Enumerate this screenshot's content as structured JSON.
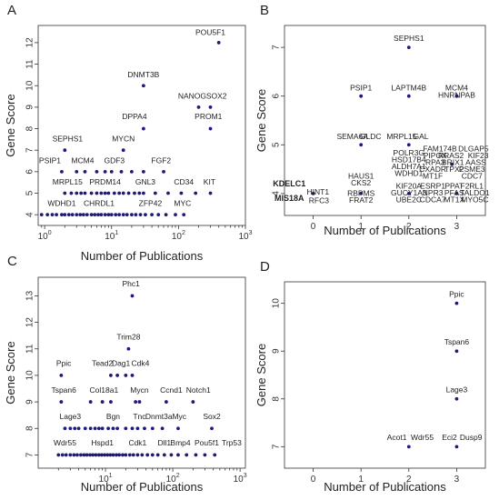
{
  "chart_data": [
    {
      "panel": "A",
      "type": "scatter",
      "xlabel": "Number of Publications",
      "ylabel": "Gene Score",
      "xscale": "log",
      "xlim": [
        0.8,
        1000
      ],
      "ylim": [
        3.5,
        12.8
      ],
      "xticks": [
        1,
        10,
        100,
        1000
      ],
      "yticks": [
        4,
        5,
        6,
        7,
        8,
        9,
        10,
        11,
        12
      ],
      "points": [
        {
          "x": 1.8,
          "y": 6
        },
        {
          "x": 3,
          "y": 6
        },
        {
          "x": 4,
          "y": 6
        },
        {
          "x": 6,
          "y": 6
        },
        {
          "x": 8,
          "y": 6
        },
        {
          "x": 10,
          "y": 6
        },
        {
          "x": 14,
          "y": 6
        },
        {
          "x": 20,
          "y": 6
        },
        {
          "x": 30,
          "y": 6
        },
        {
          "x": 2,
          "y": 5
        },
        {
          "x": 2.5,
          "y": 5
        },
        {
          "x": 3,
          "y": 5
        },
        {
          "x": 3.5,
          "y": 5
        },
        {
          "x": 4,
          "y": 5
        },
        {
          "x": 5,
          "y": 5
        },
        {
          "x": 6,
          "y": 5
        },
        {
          "x": 7,
          "y": 5
        },
        {
          "x": 8,
          "y": 5
        },
        {
          "x": 9,
          "y": 5
        },
        {
          "x": 11,
          "y": 5
        },
        {
          "x": 13,
          "y": 5
        },
        {
          "x": 15,
          "y": 5
        },
        {
          "x": 18,
          "y": 5
        },
        {
          "x": 22,
          "y": 5
        },
        {
          "x": 26,
          "y": 5
        },
        {
          "x": 30,
          "y": 5
        },
        {
          "x": 45,
          "y": 5
        },
        {
          "x": 70,
          "y": 5
        },
        {
          "x": 110,
          "y": 5
        },
        {
          "x": 180,
          "y": 5
        },
        {
          "x": 300,
          "y": 5
        },
        {
          "x": 0.9,
          "y": 4
        },
        {
          "x": 1.1,
          "y": 4
        },
        {
          "x": 1.3,
          "y": 4
        },
        {
          "x": 1.5,
          "y": 4
        },
        {
          "x": 1.8,
          "y": 4
        },
        {
          "x": 2,
          "y": 4
        },
        {
          "x": 2.3,
          "y": 4
        },
        {
          "x": 2.6,
          "y": 4
        },
        {
          "x": 3,
          "y": 4
        },
        {
          "x": 3.4,
          "y": 4
        },
        {
          "x": 3.8,
          "y": 4
        },
        {
          "x": 4.3,
          "y": 4
        },
        {
          "x": 5,
          "y": 4
        },
        {
          "x": 5.6,
          "y": 4
        },
        {
          "x": 6.3,
          "y": 4
        },
        {
          "x": 7,
          "y": 4
        },
        {
          "x": 8,
          "y": 4
        },
        {
          "x": 9,
          "y": 4
        },
        {
          "x": 10,
          "y": 4
        },
        {
          "x": 11.5,
          "y": 4
        },
        {
          "x": 13,
          "y": 4
        },
        {
          "x": 15,
          "y": 4
        },
        {
          "x": 17,
          "y": 4
        },
        {
          "x": 20,
          "y": 4
        },
        {
          "x": 23,
          "y": 4
        },
        {
          "x": 27,
          "y": 4
        },
        {
          "x": 32,
          "y": 4
        },
        {
          "x": 40,
          "y": 4
        },
        {
          "x": 50,
          "y": 4
        },
        {
          "x": 65,
          "y": 4
        },
        {
          "x": 90,
          "y": 4
        },
        {
          "x": 120,
          "y": 4
        },
        {
          "x": 2,
          "y": 7
        },
        {
          "x": 15,
          "y": 7
        },
        {
          "x": 30,
          "y": 8
        },
        {
          "x": 60,
          "y": 6
        },
        {
          "x": 30,
          "y": 10
        },
        {
          "x": 200,
          "y": 9
        },
        {
          "x": 300,
          "y": 9
        },
        {
          "x": 300,
          "y": 8
        },
        {
          "x": 400,
          "y": 12
        }
      ],
      "labels": [
        {
          "text": "POU5F1",
          "x": 300,
          "y": 12.35
        },
        {
          "text": "DNMT3B",
          "x": 30,
          "y": 10.4
        },
        {
          "text": "NANOG",
          "x": 160,
          "y": 9.4
        },
        {
          "text": "SOX2",
          "x": 370,
          "y": 9.4
        },
        {
          "text": "PROM1",
          "x": 280,
          "y": 8.45
        },
        {
          "text": "DPPA4",
          "x": 22,
          "y": 8.45
        },
        {
          "text": "MYCN",
          "x": 15,
          "y": 7.4
        },
        {
          "text": "SEPHS1",
          "x": 2.2,
          "y": 7.4
        },
        {
          "text": "FGF2",
          "x": 55,
          "y": 6.4
        },
        {
          "text": "PSIP1",
          "x": 1.2,
          "y": 6.4
        },
        {
          "text": "MCM4",
          "x": 3.7,
          "y": 6.4
        },
        {
          "text": "GDF3",
          "x": 11,
          "y": 6.4
        },
        {
          "text": "MRPL15",
          "x": 2.2,
          "y": 5.4
        },
        {
          "text": "PRDM14",
          "x": 8,
          "y": 5.4
        },
        {
          "text": "GNL3",
          "x": 32,
          "y": 5.4
        },
        {
          "text": "CD34",
          "x": 120,
          "y": 5.4
        },
        {
          "text": "KIT",
          "x": 290,
          "y": 5.4
        },
        {
          "text": "WDHD1",
          "x": 1.8,
          "y": 4.4
        },
        {
          "text": "CHRDL1",
          "x": 6.5,
          "y": 4.4
        },
        {
          "text": "ZFP42",
          "x": 38,
          "y": 4.4
        },
        {
          "text": "MYC",
          "x": 115,
          "y": 4.4
        }
      ]
    },
    {
      "panel": "B",
      "type": "scatter",
      "xlabel": "Number of Publications",
      "ylabel": "Gene Score",
      "xscale": "linear",
      "xlim": [
        -0.6,
        3.6
      ],
      "ylim": [
        3.55,
        7.45
      ],
      "xticks": [
        0,
        1,
        2,
        3
      ],
      "yticks": [
        4,
        5,
        6,
        7
      ],
      "points": [
        {
          "x": 2,
          "y": 7
        },
        {
          "x": 1,
          "y": 6
        },
        {
          "x": 2,
          "y": 6
        },
        {
          "x": 3,
          "y": 6
        },
        {
          "x": 1,
          "y": 5
        },
        {
          "x": 2,
          "y": 5
        },
        {
          "x": 0,
          "y": 4
        },
        {
          "x": 1,
          "y": 4
        },
        {
          "x": 2,
          "y": 4
        },
        {
          "x": 3,
          "y": 4
        },
        {
          "x": 2.9,
          "y": 4.6
        }
      ],
      "labels": [
        {
          "text": "SEPHS1",
          "x": 2,
          "y": 7.13
        },
        {
          "text": "PSIP1",
          "x": 1,
          "y": 6.12
        },
        {
          "text": "LAPTM4B",
          "x": 2,
          "y": 6.12
        },
        {
          "text": "MCM4",
          "x": 3,
          "y": 6.12
        },
        {
          "text": "HNRNPAB",
          "x": 3,
          "y": 5.97
        },
        {
          "text": "SEMA6A",
          "x": 0.82,
          "y": 5.12
        },
        {
          "text": "GLDC",
          "x": 1.2,
          "y": 5.12
        },
        {
          "text": "MRPL15",
          "x": 1.85,
          "y": 5.12
        },
        {
          "text": "GAL",
          "x": 2.25,
          "y": 5.12
        },
        {
          "text": "POLR3G",
          "x": 2,
          "y": 4.78
        },
        {
          "text": "HSD17B4",
          "x": 2,
          "y": 4.64
        },
        {
          "text": "ALDH7A1",
          "x": 2,
          "y": 4.5
        },
        {
          "text": "WDHD1",
          "x": 2,
          "y": 4.36
        },
        {
          "text": "KIF20A",
          "x": 2,
          "y": 4.1
        },
        {
          "text": "GUCY1A3",
          "x": 2,
          "y": 3.96
        },
        {
          "text": "UBE2C",
          "x": 2,
          "y": 3.82
        },
        {
          "text": "FAM174B",
          "x": 2.65,
          "y": 4.87
        },
        {
          "text": "PIPOX",
          "x": 2.55,
          "y": 4.73
        },
        {
          "text": "RRAS2",
          "x": 2.88,
          "y": 4.73
        },
        {
          "text": "RPA3",
          "x": 2.55,
          "y": 4.59
        },
        {
          "text": "BRIX1",
          "x": 2.92,
          "y": 4.59
        },
        {
          "text": "CXADR",
          "x": 2.5,
          "y": 4.45
        },
        {
          "text": "TPX2",
          "x": 2.95,
          "y": 4.45
        },
        {
          "text": "MT1F",
          "x": 2.5,
          "y": 4.31
        },
        {
          "text": "ESRP1",
          "x": 2.5,
          "y": 4.1
        },
        {
          "text": "PPAT",
          "x": 2.95,
          "y": 4.1
        },
        {
          "text": "NPR3",
          "x": 2.5,
          "y": 3.96
        },
        {
          "text": "PFAS",
          "x": 2.95,
          "y": 3.96
        },
        {
          "text": "CDCA7",
          "x": 2.5,
          "y": 3.82
        },
        {
          "text": "MT1X",
          "x": 2.95,
          "y": 3.82
        },
        {
          "text": "DLGAP5",
          "x": 3.35,
          "y": 4.87
        },
        {
          "text": "KIF23",
          "x": 3.45,
          "y": 4.73
        },
        {
          "text": "AASS",
          "x": 3.4,
          "y": 4.59
        },
        {
          "text": "PSME3",
          "x": 3.32,
          "y": 4.45
        },
        {
          "text": "CDC7",
          "x": 3.32,
          "y": 4.31
        },
        {
          "text": "F2RL1",
          "x": 3.32,
          "y": 4.1
        },
        {
          "text": "TALDO1",
          "x": 3.38,
          "y": 3.96
        },
        {
          "text": "MYO5C",
          "x": 3.38,
          "y": 3.82
        },
        {
          "text": "KDELC1",
          "x": -0.5,
          "y": 4.15,
          "bold": true
        },
        {
          "text": "HINT1",
          "x": 0.1,
          "y": 3.98
        },
        {
          "text": "MIS18A",
          "x": -0.5,
          "y": 3.85,
          "bold": true
        },
        {
          "text": "RFC3",
          "x": 0.12,
          "y": 3.8
        },
        {
          "text": "HAUS1",
          "x": 1,
          "y": 4.31
        },
        {
          "text": "CKS2",
          "x": 1,
          "y": 4.17
        },
        {
          "text": "RBPMS",
          "x": 1,
          "y": 3.95
        },
        {
          "text": "FRAT2",
          "x": 1,
          "y": 3.81
        }
      ]
    },
    {
      "panel": "C",
      "type": "scatter",
      "xlabel": "Number of Publications",
      "ylabel": "Gene Score",
      "xscale": "log",
      "xlim": [
        1,
        1200
      ],
      "ylim": [
        6.5,
        13.7
      ],
      "xticks": [
        10,
        100,
        1000
      ],
      "yticks": [
        7,
        8,
        9,
        10,
        11,
        12,
        13
      ],
      "points": [
        {
          "x": 25,
          "y": 13
        },
        {
          "x": 22,
          "y": 11
        },
        {
          "x": 2.2,
          "y": 10
        },
        {
          "x": 12,
          "y": 10
        },
        {
          "x": 15,
          "y": 10
        },
        {
          "x": 20,
          "y": 10
        },
        {
          "x": 25,
          "y": 10
        },
        {
          "x": 2.2,
          "y": 9
        },
        {
          "x": 6,
          "y": 9
        },
        {
          "x": 9,
          "y": 9
        },
        {
          "x": 12,
          "y": 9
        },
        {
          "x": 28,
          "y": 9
        },
        {
          "x": 32,
          "y": 9
        },
        {
          "x": 80,
          "y": 9
        },
        {
          "x": 200,
          "y": 9
        },
        {
          "x": 2.5,
          "y": 8
        },
        {
          "x": 3,
          "y": 8
        },
        {
          "x": 3.5,
          "y": 8
        },
        {
          "x": 4,
          "y": 8
        },
        {
          "x": 5,
          "y": 8
        },
        {
          "x": 6,
          "y": 8
        },
        {
          "x": 7,
          "y": 8
        },
        {
          "x": 8,
          "y": 8
        },
        {
          "x": 9,
          "y": 8
        },
        {
          "x": 11,
          "y": 8
        },
        {
          "x": 13,
          "y": 8
        },
        {
          "x": 15,
          "y": 8
        },
        {
          "x": 20,
          "y": 8
        },
        {
          "x": 25,
          "y": 8
        },
        {
          "x": 30,
          "y": 8
        },
        {
          "x": 38,
          "y": 8
        },
        {
          "x": 50,
          "y": 8
        },
        {
          "x": 70,
          "y": 8
        },
        {
          "x": 120,
          "y": 8
        },
        {
          "x": 380,
          "y": 8
        },
        {
          "x": 2,
          "y": 7
        },
        {
          "x": 2.3,
          "y": 7
        },
        {
          "x": 2.6,
          "y": 7
        },
        {
          "x": 3,
          "y": 7
        },
        {
          "x": 3.4,
          "y": 7
        },
        {
          "x": 3.8,
          "y": 7
        },
        {
          "x": 4.3,
          "y": 7
        },
        {
          "x": 4.8,
          "y": 7
        },
        {
          "x": 5.3,
          "y": 7
        },
        {
          "x": 5.9,
          "y": 7
        },
        {
          "x": 6.5,
          "y": 7
        },
        {
          "x": 7.2,
          "y": 7
        },
        {
          "x": 8,
          "y": 7
        },
        {
          "x": 8.8,
          "y": 7
        },
        {
          "x": 9.7,
          "y": 7
        },
        {
          "x": 10.7,
          "y": 7
        },
        {
          "x": 11.8,
          "y": 7
        },
        {
          "x": 13,
          "y": 7
        },
        {
          "x": 14.5,
          "y": 7
        },
        {
          "x": 16,
          "y": 7
        },
        {
          "x": 18,
          "y": 7
        },
        {
          "x": 20,
          "y": 7
        },
        {
          "x": 23,
          "y": 7
        },
        {
          "x": 26,
          "y": 7
        },
        {
          "x": 30,
          "y": 7
        },
        {
          "x": 35,
          "y": 7
        },
        {
          "x": 42,
          "y": 7
        },
        {
          "x": 50,
          "y": 7
        },
        {
          "x": 60,
          "y": 7
        },
        {
          "x": 75,
          "y": 7
        },
        {
          "x": 95,
          "y": 7
        },
        {
          "x": 120,
          "y": 7
        },
        {
          "x": 160,
          "y": 7
        },
        {
          "x": 220,
          "y": 7
        },
        {
          "x": 300,
          "y": 7
        },
        {
          "x": 420,
          "y": 7
        }
      ],
      "labels": [
        {
          "text": "Phc1",
          "x": 24,
          "y": 13.35
        },
        {
          "text": "Trim28",
          "x": 22,
          "y": 11.35
        },
        {
          "text": "Ppic",
          "x": 2.4,
          "y": 10.35
        },
        {
          "text": "Tead2",
          "x": 9,
          "y": 10.35
        },
        {
          "text": "Dag1",
          "x": 17,
          "y": 10.35
        },
        {
          "text": "Cdk4",
          "x": 33,
          "y": 10.35
        },
        {
          "text": "Tspan6",
          "x": 2.4,
          "y": 9.35
        },
        {
          "text": "Col18a1",
          "x": 9.5,
          "y": 9.35
        },
        {
          "text": "Mycn",
          "x": 32,
          "y": 9.35
        },
        {
          "text": "Ccnd1",
          "x": 95,
          "y": 9.35
        },
        {
          "text": "Notch1",
          "x": 240,
          "y": 9.35
        },
        {
          "text": "Lage3",
          "x": 3,
          "y": 8.35
        },
        {
          "text": "Bgn",
          "x": 13,
          "y": 8.35
        },
        {
          "text": "Tnc",
          "x": 32,
          "y": 8.35
        },
        {
          "text": "Dnmt3a",
          "x": 62,
          "y": 8.35
        },
        {
          "text": "Myc",
          "x": 125,
          "y": 8.35
        },
        {
          "text": "Sox2",
          "x": 380,
          "y": 8.35
        },
        {
          "text": "Wdr55",
          "x": 2.5,
          "y": 7.35
        },
        {
          "text": "Hspd1",
          "x": 9,
          "y": 7.35
        },
        {
          "text": "Cdk1",
          "x": 30,
          "y": 7.35
        },
        {
          "text": "Dll1",
          "x": 75,
          "y": 7.35
        },
        {
          "text": "Bmp4",
          "x": 130,
          "y": 7.35
        },
        {
          "text": "Pou5f1",
          "x": 320,
          "y": 7.35
        },
        {
          "text": "Trp53",
          "x": 750,
          "y": 7.35
        }
      ]
    },
    {
      "panel": "D",
      "type": "scatter",
      "xlabel": "Number of Publications",
      "ylabel": "Gene Score",
      "xscale": "linear",
      "xlim": [
        -0.6,
        3.6
      ],
      "ylim": [
        6.55,
        10.45
      ],
      "xticks": [
        0,
        1,
        2,
        3
      ],
      "yticks": [
        7,
        8,
        9,
        10
      ],
      "points": [
        {
          "x": 3,
          "y": 10
        },
        {
          "x": 3,
          "y": 9
        },
        {
          "x": 3,
          "y": 8
        },
        {
          "x": 2,
          "y": 7
        },
        {
          "x": 3,
          "y": 7
        }
      ],
      "labels": [
        {
          "text": "Ppic",
          "x": 3,
          "y": 10.14
        },
        {
          "text": "Tspan6",
          "x": 3,
          "y": 9.14
        },
        {
          "text": "Lage3",
          "x": 3,
          "y": 8.14
        },
        {
          "text": "Acot1",
          "x": 1.75,
          "y": 7.14
        },
        {
          "text": "Wdr55",
          "x": 2.28,
          "y": 7.14
        },
        {
          "text": "Eci2",
          "x": 2.85,
          "y": 7.14
        },
        {
          "text": "Dusp9",
          "x": 3.3,
          "y": 7.14
        }
      ]
    }
  ]
}
